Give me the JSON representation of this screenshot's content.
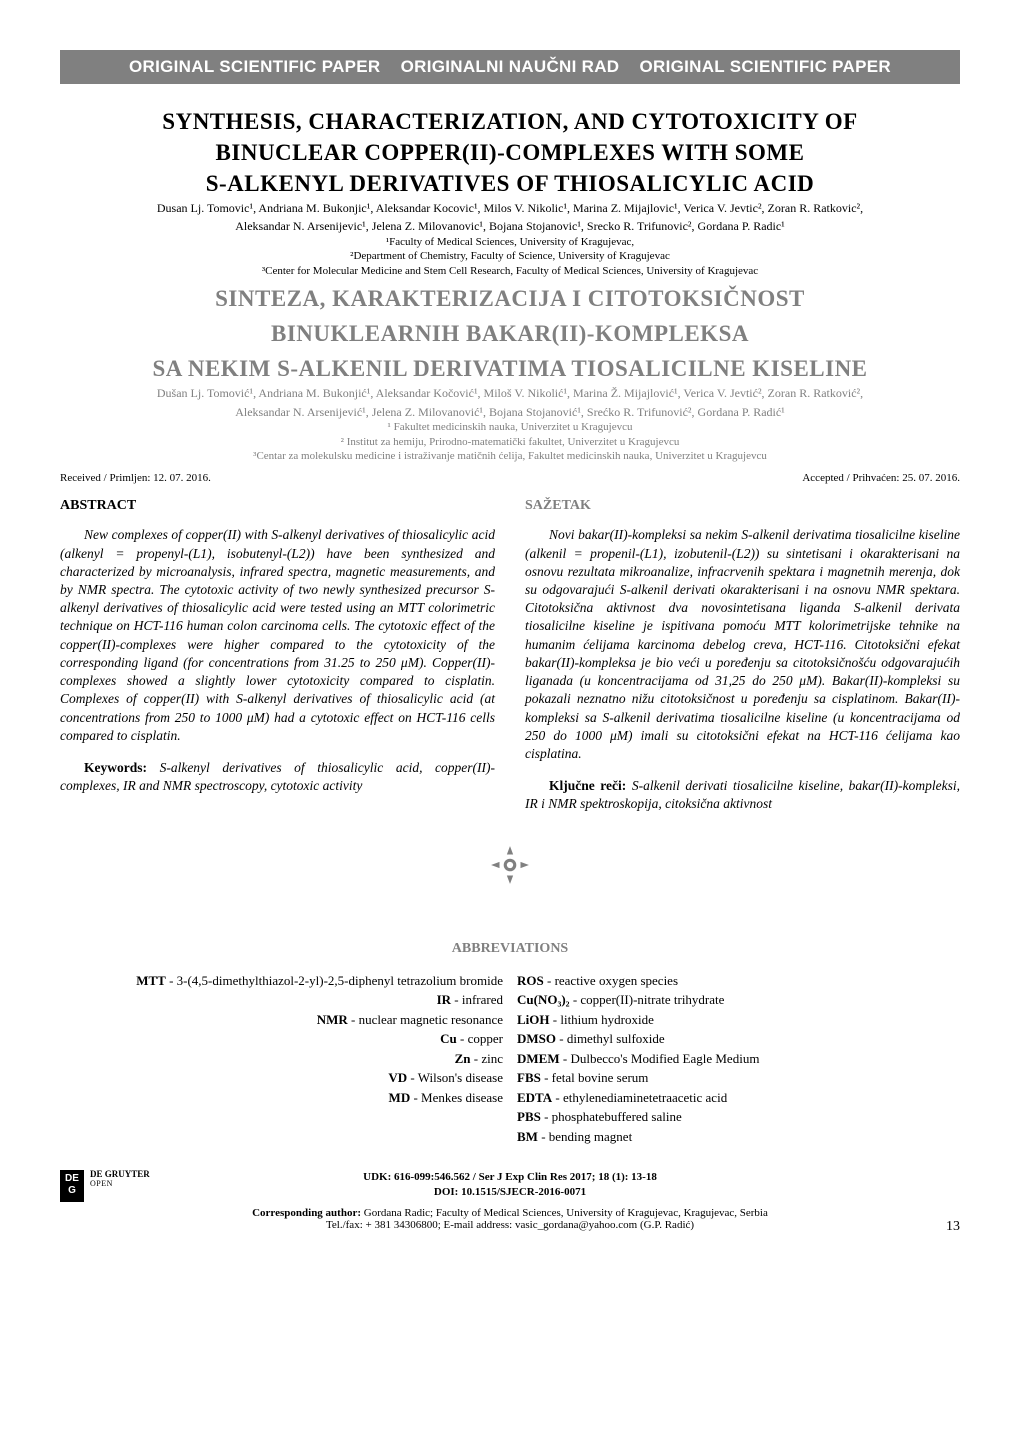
{
  "header_bar": "ORIGINAL SCIENTIFIC PAPER    ORIGINALNI NAUČNI RAD    ORIGINAL SCIENTIFIC PAPER",
  "title_en": {
    "line1": "SYNTHESIS, CHARACTERIZATION, AND CYTOTOXICITY OF",
    "line2": "BINUCLEAR COPPER(II)-COMPLEXES WITH SOME",
    "line3": "S-ALKENYL DERIVATIVES OF THIOSALICYLIC ACID"
  },
  "authors_en_line1": "Dusan Lj. Tomovic¹, Andriana M. Bukonjic¹, Aleksandar Kocovic¹, Milos V. Nikolic¹, Marina Z. Mijajlovic¹, Verica V. Jevtic², Zoran R. Ratkovic²,",
  "authors_en_line2": "Aleksandar N. Arsenijevic¹, Jelena Z. Milovanovic¹, Bojana Stojanovic¹, Srecko R. Trifunovic², Gordana P. Radic¹",
  "affil_en": {
    "a1": "¹Faculty of Medical Sciences, University of Kragujevac,",
    "a2": "²Department of Chemistry, Faculty of Science, University of Kragujevac",
    "a3": "³Center for Molecular Medicine and Stem Cell Research, Faculty of Medical Sciences, University of Kragujevac"
  },
  "title_sr": {
    "line1": "SINTEZA, KARAKTERIZACIJA I CITOTOKSIČNOST",
    "line2": "BINUKLEARNIH BAKAR(II)-KOMPLEKSA",
    "line3": "SA NEKIM S-ALKENIL DERIVATIMA TIOSALICILNE KISELINE"
  },
  "authors_sr_line1": "Dušan Lj. Tomović¹, Andriana M. Bukonjić¹, Aleksandar Kočović¹, Miloš V. Nikolić¹, Marina Ž. Mijajlović¹, Verica V. Jevtić², Zoran R. Ratković²,",
  "authors_sr_line2": "Aleksandar N. Arsenijević¹, Jelena Z. Milovanović¹, Bojana Stojanović¹, Srećko R. Trifunović², Gordana P. Radić¹",
  "affil_sr": {
    "a1": "¹ Fakultet medicinskih nauka, Univerzitet u Kragujevcu",
    "a2": "² Institut za hemiju, Prirodno-matematički fakultet, Univerzitet u Kragujevcu",
    "a3": "³Centar za molekulsku medicine i istraživanje matičnih ćelija, Fakultet medicinskih nauka, Univerzitet u Kragujevcu"
  },
  "received": "Received / Primljen: 12. 07. 2016.",
  "accepted": "Accepted / Prihvaćen: 25. 07. 2016.",
  "abstract": {
    "head": "ABSTRACT",
    "body": "New complexes of copper(II) with S-alkenyl derivatives of thiosalicylic acid (alkenyl = propenyl-(L1), isobutenyl-(L2)) have been synthesized and characterized by microanalysis, infrared spectra, magnetic measurements, and by NMR spectra. The cytotoxic activity of two newly synthesized precursor S-alkenyl derivatives of thiosalicylic acid were tested using an MTT colorimetric technique on HCT-116 human colon carcinoma cells. The cytotoxic effect of the copper(II)-complexes were higher compared to the cytotoxicity of the corresponding ligand (for concentrations from 31.25 to 250 μM). Copper(II)-complexes showed a slightly lower cytotoxicity compared to cisplatin. Complexes of copper(II) with S-alkenyl derivatives of thiosalicylic acid (at concentrations from 250 to 1000 μM) had a cytotoxic effect on HCT-116 cells compared to cisplatin.",
    "kw_label": "Keywords:",
    "kw_text": " S-alkenyl derivatives of thiosalicylic acid, copper(II)-complexes, IR and NMR spectroscopy, cytotoxic activity"
  },
  "sazetak": {
    "head": "SAŽETAK",
    "body": "Novi bakar(II)-kompleksi sa nekim S-alkenil derivatima tiosalicilne kiseline (alkenil = propenil-(L1), izobutenil-(L2)) su sintetisani i okarakterisani na osnovu rezultata mikroanalize, infracrvenih spektara i magnetnih merenja, dok su odgovarajući S-alkenil derivati okarakterisani i na osnovu NMR spektara. Citotoksična aktivnost dva novosintetisana liganda S-alkenil derivata tiosalicilne kiseline je ispitivana pomoću MTT kolorimetrijske tehnike na humanim ćelijama karcinoma debelog creva, HCT-116. Citotoksični efekat bakar(II)-kompleksa je bio veći u poređenju sa citotoksičnošću odgovarajućih liganada (u koncentracijama od 31,25 do 250 μM). Bakar(II)-kompleksi su pokazali neznatno nižu citotoksičnost u poređenju sa cisplatinom. Bakar(II)-kompleksi sa S-alkenil derivatima tiosalicilne kiseline (u koncentracijama od 250 do 1000 μM) imali su citotoksični efekat na HCT-116 ćelijama kao cisplatina.",
    "kw_label": "Ključne reči:",
    "kw_text": " S-alkenil derivati tiosalicilne kiseline, bakar(II)-kompleksi, IR i NMR spektroskopija, citoksična aktivnost"
  },
  "abbrev": {
    "head": "ABBREVIATIONS",
    "left": [
      {
        "abbr": "MTT",
        "def": " - 3-(4,5-dimethylthiazol-2-yl)-2,5-diphenyl tetrazolium bromide"
      },
      {
        "abbr": "IR",
        "def": " - infrared"
      },
      {
        "abbr": "NMR",
        "def": " - nuclear magnetic resonance"
      },
      {
        "abbr": "Cu",
        "def": " - copper"
      },
      {
        "abbr": "Zn",
        "def": " - zinc"
      },
      {
        "abbr": "VD",
        "def": " - Wilson's disease"
      },
      {
        "abbr": "MD",
        "def": " - Menkes disease"
      }
    ],
    "right": [
      {
        "abbr": "ROS",
        "def": " - reactive oxygen species"
      },
      {
        "abbr": "Cu(NO₃)₂",
        "def": " - copper(II)-nitrate trihydrate"
      },
      {
        "abbr": "LiOH",
        "def": " - lithium hydroxide"
      },
      {
        "abbr": "DMSO",
        "def": " - dimethyl sulfoxide"
      },
      {
        "abbr": "DMEM",
        "def": " - Dulbecco's Modified Eagle Medium"
      },
      {
        "abbr": "FBS",
        "def": " - fetal bovine serum"
      },
      {
        "abbr": "EDTA",
        "def": " - ethylenediaminetetraacetic acid"
      },
      {
        "abbr": "PBS",
        "def": " - phosphatebuffered saline"
      },
      {
        "abbr": "BM",
        "def": " - bending magnet"
      }
    ]
  },
  "footer": {
    "publisher_name": "DE GRUYTER",
    "publisher_open": "OPEN",
    "udk": "UDK: 616-099:546.562 / Ser J Exp Clin Res 2017; 18 (1): 13-18",
    "doi": "DOI: 10.1515/SJECR-2016-0071",
    "corresponding_label": "Corresponding author:",
    "corresponding_text": " Gordana Radic; Faculty of Medical Sciences, University of Kragujevac, Kragujevac, Serbia",
    "corresponding_contact": "Tel./fax: + 381 34306800; E-mail address: vasic_gordana@yahoo.com (G.P. Radić)"
  },
  "page_number": "13",
  "colors": {
    "header_bg": "#808080",
    "header_fg": "#ffffff",
    "sr_gray": "#808080",
    "text": "#000000",
    "page_bg": "#ffffff"
  }
}
